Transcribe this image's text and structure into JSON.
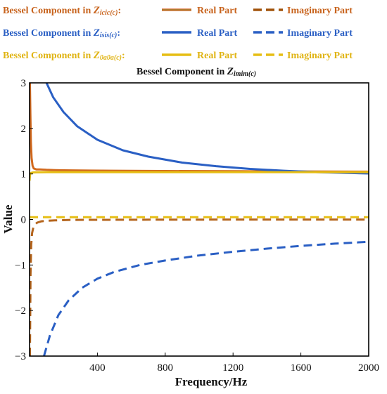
{
  "chart_data": {
    "type": "line",
    "title_prefix": "Bessel Component in ",
    "title_symbol": "Z",
    "title_subscript": "imim(c)",
    "xlabel": "Frequency/Hz",
    "ylabel": "Value",
    "xlim": [
      0,
      2000
    ],
    "ylim": [
      -3,
      3
    ],
    "xticks": [
      400,
      800,
      1200,
      1600,
      2000
    ],
    "yticks": [
      -3,
      -2,
      -1,
      0,
      1,
      2,
      3
    ],
    "xtick_labels": [
      "400",
      "800",
      "1200",
      "1600",
      "2000"
    ],
    "ytick_labels": [
      "−3",
      "−2",
      "−1",
      "0",
      "1",
      "2",
      "3"
    ],
    "grid": false,
    "legend_placement": "top",
    "legend": [
      {
        "label_prefix": "Bessel  Component in ",
        "symbol": "Z",
        "subscript": "icic(c)",
        "suffix": ":",
        "real_label": "Real Part",
        "imag_label": "Imaginary Part",
        "text_color": "#c8641e",
        "real_color": "#c8641e",
        "imag_color": "#a0520a",
        "line_accent": "#6a9a3a"
      },
      {
        "label_prefix": "Bessel  Component in ",
        "symbol": "Z",
        "subscript": "isis(c)",
        "suffix": ":",
        "real_label": "Real Part",
        "imag_label": "Imaginary Part",
        "text_color": "#2a5fc4",
        "real_color": "#2a5fc4",
        "imag_color": "#2a5fc4",
        "line_accent": "#2a5fc4"
      },
      {
        "label_prefix": "Bessel  Component in ",
        "symbol": "Z",
        "subscript": "0a0a(c)",
        "suffix": ":",
        "real_label": "Real Part",
        "imag_label": "Imaginary Part",
        "text_color": "#e0b414",
        "real_color": "#e6be14",
        "imag_color": "#e6be14",
        "line_accent": "#e6be14"
      }
    ],
    "series": [
      {
        "key": "icic_real",
        "color": "#d2691e",
        "dash": "solid",
        "x": [
          2,
          5,
          8,
          12,
          18,
          25,
          40,
          60,
          100,
          150,
          200,
          300,
          500,
          800,
          1200,
          1600,
          2000
        ],
        "y": [
          3.0,
          2.3,
          1.7,
          1.35,
          1.18,
          1.12,
          1.1,
          1.1,
          1.09,
          1.085,
          1.08,
          1.075,
          1.07,
          1.065,
          1.06,
          1.055,
          1.05
        ]
      },
      {
        "key": "icic_imag",
        "color": "#b5651d",
        "dash": "dashed",
        "x": [
          2,
          6,
          10,
          15,
          22,
          30,
          45,
          70,
          100,
          150,
          250,
          400,
          700,
          1000,
          1400,
          2000
        ],
        "y": [
          -3.0,
          -1.2,
          -0.55,
          -0.3,
          -0.18,
          -0.12,
          -0.07,
          -0.04,
          -0.03,
          -0.02,
          -0.01,
          -0.008,
          -0.005,
          -0.003,
          -0.002,
          -0.001
        ]
      },
      {
        "key": "isis_real",
        "color": "#2a5fc4",
        "dash": "solid",
        "x": [
          100,
          140,
          200,
          280,
          400,
          550,
          700,
          900,
          1100,
          1300,
          1500,
          1700,
          2000
        ],
        "y": [
          3.0,
          2.68,
          2.36,
          2.05,
          1.75,
          1.52,
          1.38,
          1.25,
          1.17,
          1.11,
          1.07,
          1.04,
          1.01
        ]
      },
      {
        "key": "isis_imag",
        "color": "#2a5fc4",
        "dash": "dashed",
        "x": [
          85,
          120,
          170,
          230,
          310,
          400,
          500,
          650,
          800,
          1000,
          1200,
          1400,
          1600,
          1800,
          2000
        ],
        "y": [
          -3.0,
          -2.55,
          -2.1,
          -1.78,
          -1.5,
          -1.3,
          -1.15,
          -1.0,
          -0.9,
          -0.79,
          -0.71,
          -0.64,
          -0.58,
          -0.53,
          -0.49
        ]
      },
      {
        "key": "oaoa_real",
        "color": "#e6be14",
        "dash": "solid",
        "x": [
          0,
          2,
          4,
          8,
          15,
          30,
          100,
          500,
          1000,
          1500,
          2000
        ],
        "y": [
          0.85,
          0.95,
          1.0,
          1.02,
          1.03,
          1.035,
          1.04,
          1.04,
          1.04,
          1.04,
          1.04
        ]
      },
      {
        "key": "oaoa_imag",
        "color": "#e6be14",
        "dash": "dashed",
        "x": [
          0,
          500,
          1000,
          1500,
          2000
        ],
        "y": [
          0.05,
          0.05,
          0.05,
          0.05,
          0.05
        ]
      }
    ]
  }
}
